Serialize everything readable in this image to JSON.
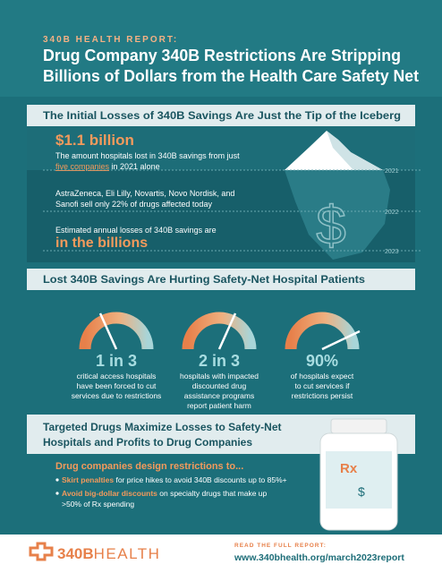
{
  "header": {
    "kicker": "340B HEALTH REPORT:",
    "title_lines": [
      "Drug Company 340B Restrictions Are Stripping",
      "Billions of Dollars from the Health Care Safety Net"
    ]
  },
  "section1": {
    "heading": "The Initial Losses of 340B Savings Are Just the Tip of the Iceberg",
    "amount": "$1.1 billion",
    "amount_desc": [
      "The amount hospitals lost in 340B savings from just",
      "five companies",
      " in 2021 alone"
    ],
    "companies_desc": [
      "AstraZeneca, Eli Lilly, Novartis, Novo Nordisk, and",
      "Sanofi sell only 22% of drugs affected today"
    ],
    "estimate_desc": "Estimated annual losses of 340B savings are",
    "estimate": "in the billions",
    "years": [
      "2021",
      "2022",
      "2023"
    ]
  },
  "section2": {
    "heading": "Lost 340B Savings Are Hurting Safety-Net Hospital Patients",
    "stats": [
      {
        "value": "1 in 3",
        "desc": [
          "critical access hospitals",
          "have been forced to cut",
          "services due to restrictions"
        ]
      },
      {
        "value": "2 in 3",
        "desc": [
          "hospitals with impacted",
          "discounted drug",
          "assistance programs",
          "report patient harm"
        ]
      },
      {
        "value": "90%",
        "desc": [
          "of hospitals expect",
          "to cut services if",
          "restrictions persist"
        ]
      }
    ]
  },
  "section3": {
    "heading_lines": [
      "Targeted Drugs Maximize Losses to Safety-Net",
      "Hospitals and Profits to Drug Companies"
    ],
    "lead": "Drug companies design restrictions to...",
    "bullets": [
      {
        "bold": "Skirt penalties",
        "text": [
          " for price hikes to avoid 340B discounts up to 85%+"
        ]
      },
      {
        "bold": "Avoid big-dollar discounts",
        "text": [
          " on specialty drugs that make up",
          ">50% of Rx spending"
        ]
      }
    ],
    "bottle_label": "Rx"
  },
  "footer": {
    "logo_bold": "340B",
    "logo_rest": "HEALTH",
    "cta": "READ THE FULL REPORT:",
    "url": "www.340bhealth.org/march2023report"
  }
}
